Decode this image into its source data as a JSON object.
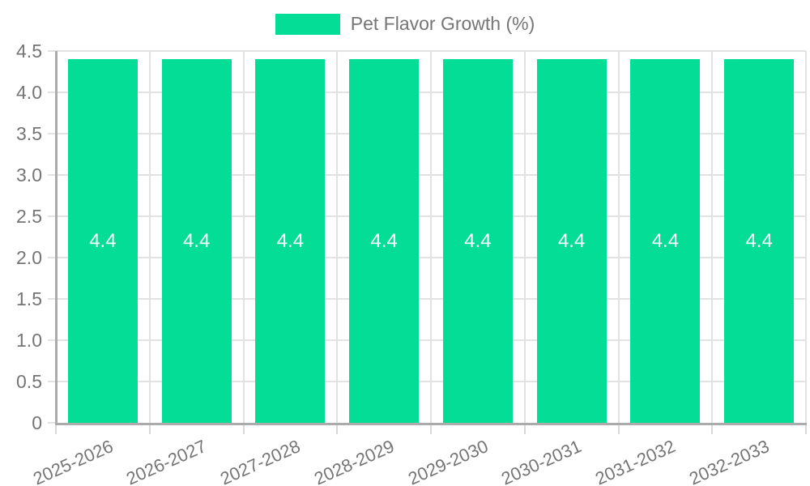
{
  "legend": {
    "position": "top-center",
    "items": [
      {
        "label": "Pet Flavor Growth (%)",
        "color": "#03dd96"
      }
    ]
  },
  "chart_data": {
    "type": "bar",
    "title": "",
    "categories": [
      "2025-2026",
      "2026-2027",
      "2027-2028",
      "2028-2029",
      "2029-2030",
      "2030-2031",
      "2031-2032",
      "2032-2033"
    ],
    "series": [
      {
        "name": "Pet Flavor Growth (%)",
        "values": [
          4.4,
          4.4,
          4.4,
          4.4,
          4.4,
          4.4,
          4.4,
          4.4
        ],
        "value_labels": [
          "4.4",
          "4.4",
          "4.4",
          "4.4",
          "4.4",
          "4.4",
          "4.4",
          "4.4"
        ]
      }
    ],
    "xlabel": "",
    "ylabel": "",
    "ylim": [
      0,
      4.5
    ],
    "ytick_step": 0.5,
    "ytick_labels": [
      "0",
      "0.5",
      "1.0",
      "1.5",
      "2.0",
      "2.5",
      "3.0",
      "3.5",
      "4.0",
      "4.5"
    ],
    "grid": true,
    "value_label_position": "inside-center",
    "xtick_rotation_deg": -24,
    "colors": {
      "bar": "#03dd96",
      "bar_value_label": "#ffffff",
      "axis_text": "#757575",
      "axis_line": "#ababab",
      "gridline": "#e2e2e2",
      "background": "#ffffff"
    }
  }
}
